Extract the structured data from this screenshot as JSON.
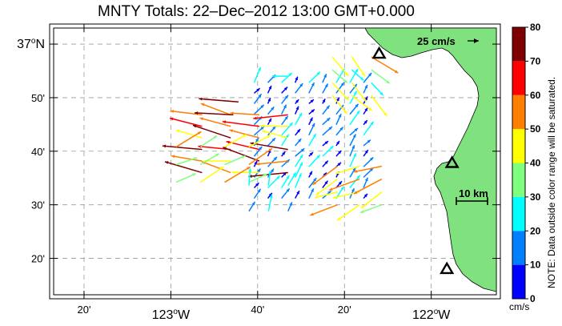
{
  "title": "MNTY Totals: 22–Dec–2012 13:00 GMT+0.000",
  "lat_labels": [
    {
      "text": "37",
      "suffix": "N",
      "lat": 37.0,
      "big": true
    },
    {
      "text": "50'",
      "lat": 36.8333
    },
    {
      "text": "40'",
      "lat": 36.6667
    },
    {
      "text": "30'",
      "lat": 36.5
    },
    {
      "text": "20'",
      "lat": 36.3333
    }
  ],
  "lon_labels": [
    {
      "text": "20'",
      "lon": -123.3333
    },
    {
      "text": "123",
      "suffix": "W",
      "lon": -123.0,
      "big": true
    },
    {
      "text": "40'",
      "lon": -122.6667
    },
    {
      "text": "20'",
      "lon": -122.3333
    },
    {
      "text": "122",
      "suffix": "W",
      "lon": -122.0,
      "big": true
    }
  ],
  "map_extent": {
    "lon_min": -123.45,
    "lon_max": -121.75,
    "lat_min": 36.22,
    "lat_max": 37.05
  },
  "scale_arrow_label": "25 cm/s",
  "scale_bar_label": "10 km",
  "colorbar": {
    "ticks": [
      "0",
      "10",
      "20",
      "30",
      "40",
      "50",
      "60",
      "70",
      "80"
    ],
    "colors": [
      "#0000ff",
      "#007fff",
      "#00ffff",
      "#7fff7f",
      "#ffff00",
      "#ff7f00",
      "#ff0000",
      "#7f0000"
    ],
    "unit": "cm/s",
    "note": "NOTE: Data outside color range will be saturated."
  },
  "land_color": "#7fe27f",
  "sites": [
    {
      "lon": -122.2,
      "lat": 36.97
    },
    {
      "lon": -121.92,
      "lat": 36.63
    },
    {
      "lon": -121.94,
      "lat": 36.3
    }
  ],
  "vector_groups": [
    {
      "lon0": -122.68,
      "lon1": -122.26,
      "lat0": 36.52,
      "lat1": 36.88,
      "nx": 9,
      "ny": 12,
      "u": 0.55,
      "v": 0.75,
      "speed_min": 3,
      "speed_max": 28
    },
    {
      "lon0": -122.88,
      "lon1": -122.55,
      "lat0": 36.6,
      "lat1": 36.78,
      "nx": 4,
      "ny": 6,
      "u": -0.95,
      "v": 0.12,
      "speed_min": 45,
      "speed_max": 78
    },
    {
      "lon0": -122.98,
      "lon1": -122.7,
      "lat0": 36.57,
      "lat1": 36.68,
      "nx": 4,
      "ny": 3,
      "u": 0.85,
      "v": 0.45,
      "speed_min": 30,
      "speed_max": 55
    },
    {
      "lon0": -122.36,
      "lon1": -122.19,
      "lat0": 36.5,
      "lat1": 36.62,
      "nx": 3,
      "ny": 4,
      "u": -0.88,
      "v": -0.4,
      "speed_min": 38,
      "speed_max": 62
    },
    {
      "lon0": -122.38,
      "lon1": -122.23,
      "lat0": 36.84,
      "lat1": 36.96,
      "nx": 3,
      "ny": 4,
      "u": 0.7,
      "v": -0.62,
      "speed_min": 25,
      "speed_max": 58
    },
    {
      "lon0": -122.7,
      "lon1": -122.55,
      "lat0": 36.48,
      "lat1": 36.56,
      "nx": 3,
      "ny": 2,
      "u": 0.3,
      "v": 0.9,
      "speed_min": 12,
      "speed_max": 30
    }
  ],
  "single_vectors": [
    {
      "lon": -122.74,
      "lat": 36.82,
      "u": -0.98,
      "v": 0.08,
      "speed": 76
    },
    {
      "lon": -122.76,
      "lat": 36.78,
      "u": -0.98,
      "v": 0.05,
      "speed": 74
    },
    {
      "lon": -122.55,
      "lat": 36.9,
      "u": -1.0,
      "v": 0.0,
      "speed": 24
    }
  ]
}
